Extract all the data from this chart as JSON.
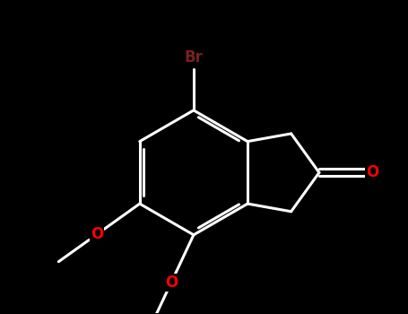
{
  "background_color": "#000000",
  "bond_color": "#ffffff",
  "br_color": "#7a2020",
  "o_color": "#ff0000",
  "bond_width": 2.2,
  "figsize": [
    4.55,
    3.5
  ],
  "dpi": 100,
  "xlim": [
    -3.5,
    3.5
  ],
  "ylim": [
    -3.0,
    3.0
  ],
  "font_size_br": 12,
  "font_size_o": 12
}
